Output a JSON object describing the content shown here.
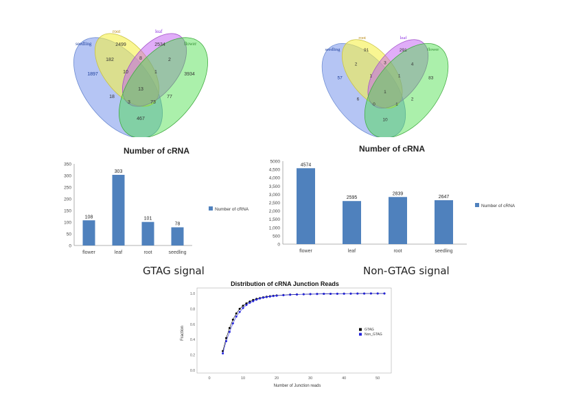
{
  "chart_data": [
    {
      "type": "venn",
      "sets": [
        "seedling",
        "root",
        "leaf",
        "flower"
      ],
      "set_colors": [
        "#1a3c9a",
        "#b8860b",
        "#8a2be2",
        "#2e8b2e"
      ],
      "regions": [
        {
          "label": "seedling only",
          "value": 1897
        },
        {
          "label": "root only",
          "value": 2499
        },
        {
          "label": "leaf only",
          "value": 2534
        },
        {
          "label": "flower only",
          "value": 3934
        },
        {
          "label": "seedling∩root",
          "value": 182
        },
        {
          "label": "root∩leaf",
          "value": 8
        },
        {
          "label": "leaf∩flower",
          "value": 2
        },
        {
          "label": "seedling∩root∩leaf",
          "value": 10
        },
        {
          "label": "root∩leaf∩flower",
          "value": 1
        },
        {
          "label": "seedling∩leaf",
          "value": 18
        },
        {
          "label": "all",
          "value": 13
        },
        {
          "label": "root∩flower",
          "value": 77
        },
        {
          "label": "seedling∩leaf∩flower",
          "value": 3
        },
        {
          "label": "seedling∩root∩flower",
          "value": 73
        },
        {
          "label": "seedling∩flower",
          "value": 467
        }
      ]
    },
    {
      "type": "venn",
      "sets": [
        "seedling",
        "root",
        "leaf",
        "flower"
      ],
      "set_colors": [
        "#1a3c9a",
        "#b8860b",
        "#8a2be2",
        "#2e8b2e"
      ],
      "regions": [
        {
          "label": "seedling only",
          "value": 57
        },
        {
          "label": "root only",
          "value": 91
        },
        {
          "label": "leaf only",
          "value": 291
        },
        {
          "label": "flower only",
          "value": 83
        },
        {
          "label": "seedling∩root",
          "value": 2
        },
        {
          "label": "root∩leaf",
          "value": 3
        },
        {
          "label": "leaf∩flower",
          "value": 4
        },
        {
          "label": "seedling∩root∩leaf",
          "value": 1
        },
        {
          "label": "root∩leaf∩flower",
          "value": 1
        },
        {
          "label": "seedling∩leaf",
          "value": 6
        },
        {
          "label": "all",
          "value": 1
        },
        {
          "label": "root∩flower",
          "value": 2
        },
        {
          "label": "seedling∩leaf∩flower",
          "value": 0
        },
        {
          "label": "seedling∩root∩flower",
          "value": 1
        },
        {
          "label": "seedling∩flower",
          "value": 10
        }
      ]
    },
    {
      "type": "bar",
      "title": "Number of cRNA",
      "caption": "GTAG signal",
      "categories": [
        "flower",
        "leaf",
        "root",
        "seedling"
      ],
      "series": [
        {
          "name": "Number of cRNA",
          "values": [
            108,
            303,
            101,
            78
          ]
        }
      ],
      "ylim": [
        0,
        350
      ],
      "yticks": [
        0,
        50,
        100,
        150,
        200,
        250,
        300,
        350
      ],
      "color": "#4f81bd"
    },
    {
      "type": "bar",
      "title": "Number of cRNA",
      "caption": "Non-GTAG signal",
      "categories": [
        "flower",
        "leaf",
        "root",
        "seedling"
      ],
      "series": [
        {
          "name": "Number of cRNA",
          "values": [
            4574,
            2595,
            2839,
            2647
          ]
        }
      ],
      "ylim": [
        0,
        5000
      ],
      "yticks": [
        "0",
        "500",
        "1,000",
        "1,500",
        "2,000",
        "2,500",
        "3,000",
        "3,500",
        "4,000",
        "4,500",
        "5000"
      ],
      "color": "#4f81bd"
    },
    {
      "type": "scatter",
      "title": "Distribution of cRNA Junction Reads",
      "xlabel": "Number of Junction reads",
      "ylabel": "Fraction",
      "xlim": [
        0,
        52
      ],
      "ylim": [
        0,
        1
      ],
      "xticks": [
        0,
        10,
        20,
        30,
        40,
        50
      ],
      "yticks": [
        0,
        0.2,
        0.4,
        0.6,
        0.8,
        1.0
      ],
      "series": [
        {
          "name": "GTAG",
          "color": "#000000",
          "x": [
            4,
            5,
            6,
            7,
            8,
            9,
            10,
            11,
            12,
            13,
            14,
            15,
            16,
            17,
            18,
            19,
            20,
            22,
            24,
            26,
            28,
            30,
            32,
            34,
            36,
            38,
            40,
            42,
            44,
            46,
            48,
            50,
            52
          ],
          "y": [
            0.25,
            0.42,
            0.55,
            0.66,
            0.74,
            0.8,
            0.84,
            0.87,
            0.895,
            0.915,
            0.93,
            0.94,
            0.95,
            0.958,
            0.964,
            0.97,
            0.974,
            0.98,
            0.985,
            0.988,
            0.99,
            0.992,
            0.994,
            0.995,
            0.996,
            0.997,
            0.998,
            0.998,
            0.999,
            0.999,
            1.0,
            1.0,
            1.0
          ]
        },
        {
          "name": "Non_GTAG",
          "color": "#2222dd",
          "x": [
            4,
            5,
            6,
            7,
            8,
            9,
            10,
            11,
            12,
            13,
            14,
            15,
            16,
            17,
            18,
            19,
            20,
            22,
            24,
            26,
            28,
            30,
            32,
            34,
            36,
            38,
            40,
            42,
            44,
            46,
            48,
            50,
            52
          ],
          "y": [
            0.22,
            0.38,
            0.5,
            0.61,
            0.7,
            0.76,
            0.81,
            0.85,
            0.88,
            0.9,
            0.92,
            0.935,
            0.945,
            0.953,
            0.96,
            0.966,
            0.971,
            0.978,
            0.983,
            0.987,
            0.99,
            0.992,
            0.993,
            0.995,
            0.996,
            0.997,
            0.997,
            0.998,
            0.999,
            0.999,
            1.0,
            1.0,
            1.0
          ]
        }
      ]
    }
  ]
}
